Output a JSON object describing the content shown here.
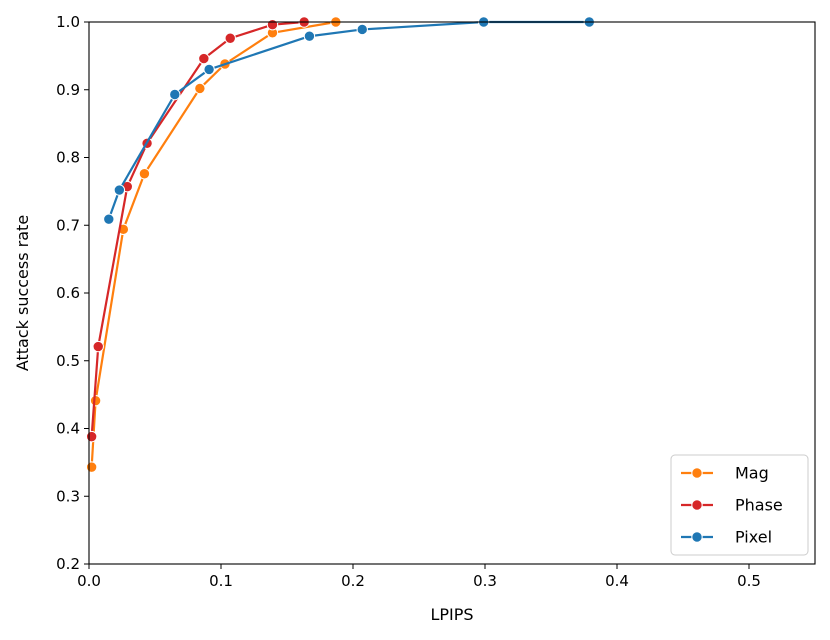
{
  "chart_data": {
    "type": "line",
    "xlabel": "LPIPS",
    "ylabel": "Attack success rate",
    "xlim": [
      0.0,
      0.55
    ],
    "ylim": [
      0.2,
      1.0
    ],
    "xticks": [
      0.0,
      0.1,
      0.2,
      0.3,
      0.4,
      0.5
    ],
    "xtick_labels": [
      "0.0",
      "0.1",
      "0.2",
      "0.3",
      "0.4",
      "0.5"
    ],
    "yticks": [
      0.2,
      0.3,
      0.4,
      0.5,
      0.6,
      0.7,
      0.8,
      0.9,
      1.0
    ],
    "ytick_labels": [
      "0.2",
      "0.3",
      "0.4",
      "0.5",
      "0.6",
      "0.7",
      "0.8",
      "0.9",
      "1.0"
    ],
    "grid": false,
    "legend_position": "lower-right",
    "series": [
      {
        "name": "Mag",
        "color": "#ff7f0e",
        "points": [
          [
            0.002,
            0.343
          ],
          [
            0.005,
            0.441
          ],
          [
            0.026,
            0.694
          ],
          [
            0.042,
            0.776
          ],
          [
            0.084,
            0.902
          ],
          [
            0.103,
            0.938
          ],
          [
            0.139,
            0.984
          ],
          [
            0.187,
            1.0
          ]
        ]
      },
      {
        "name": "Phase",
        "color": "#d62728",
        "points": [
          [
            0.002,
            0.388
          ],
          [
            0.007,
            0.521
          ],
          [
            0.029,
            0.757
          ],
          [
            0.044,
            0.821
          ],
          [
            0.087,
            0.946
          ],
          [
            0.107,
            0.976
          ],
          [
            0.139,
            0.996
          ],
          [
            0.163,
            1.0
          ]
        ]
      },
      {
        "name": "Pixel",
        "color": "#1f77b4",
        "points": [
          [
            0.015,
            0.709
          ],
          [
            0.023,
            0.752
          ],
          [
            0.065,
            0.893
          ],
          [
            0.091,
            0.93
          ],
          [
            0.167,
            0.979
          ],
          [
            0.207,
            0.989
          ],
          [
            0.299,
            1.0
          ],
          [
            0.379,
            1.0
          ]
        ]
      }
    ]
  }
}
